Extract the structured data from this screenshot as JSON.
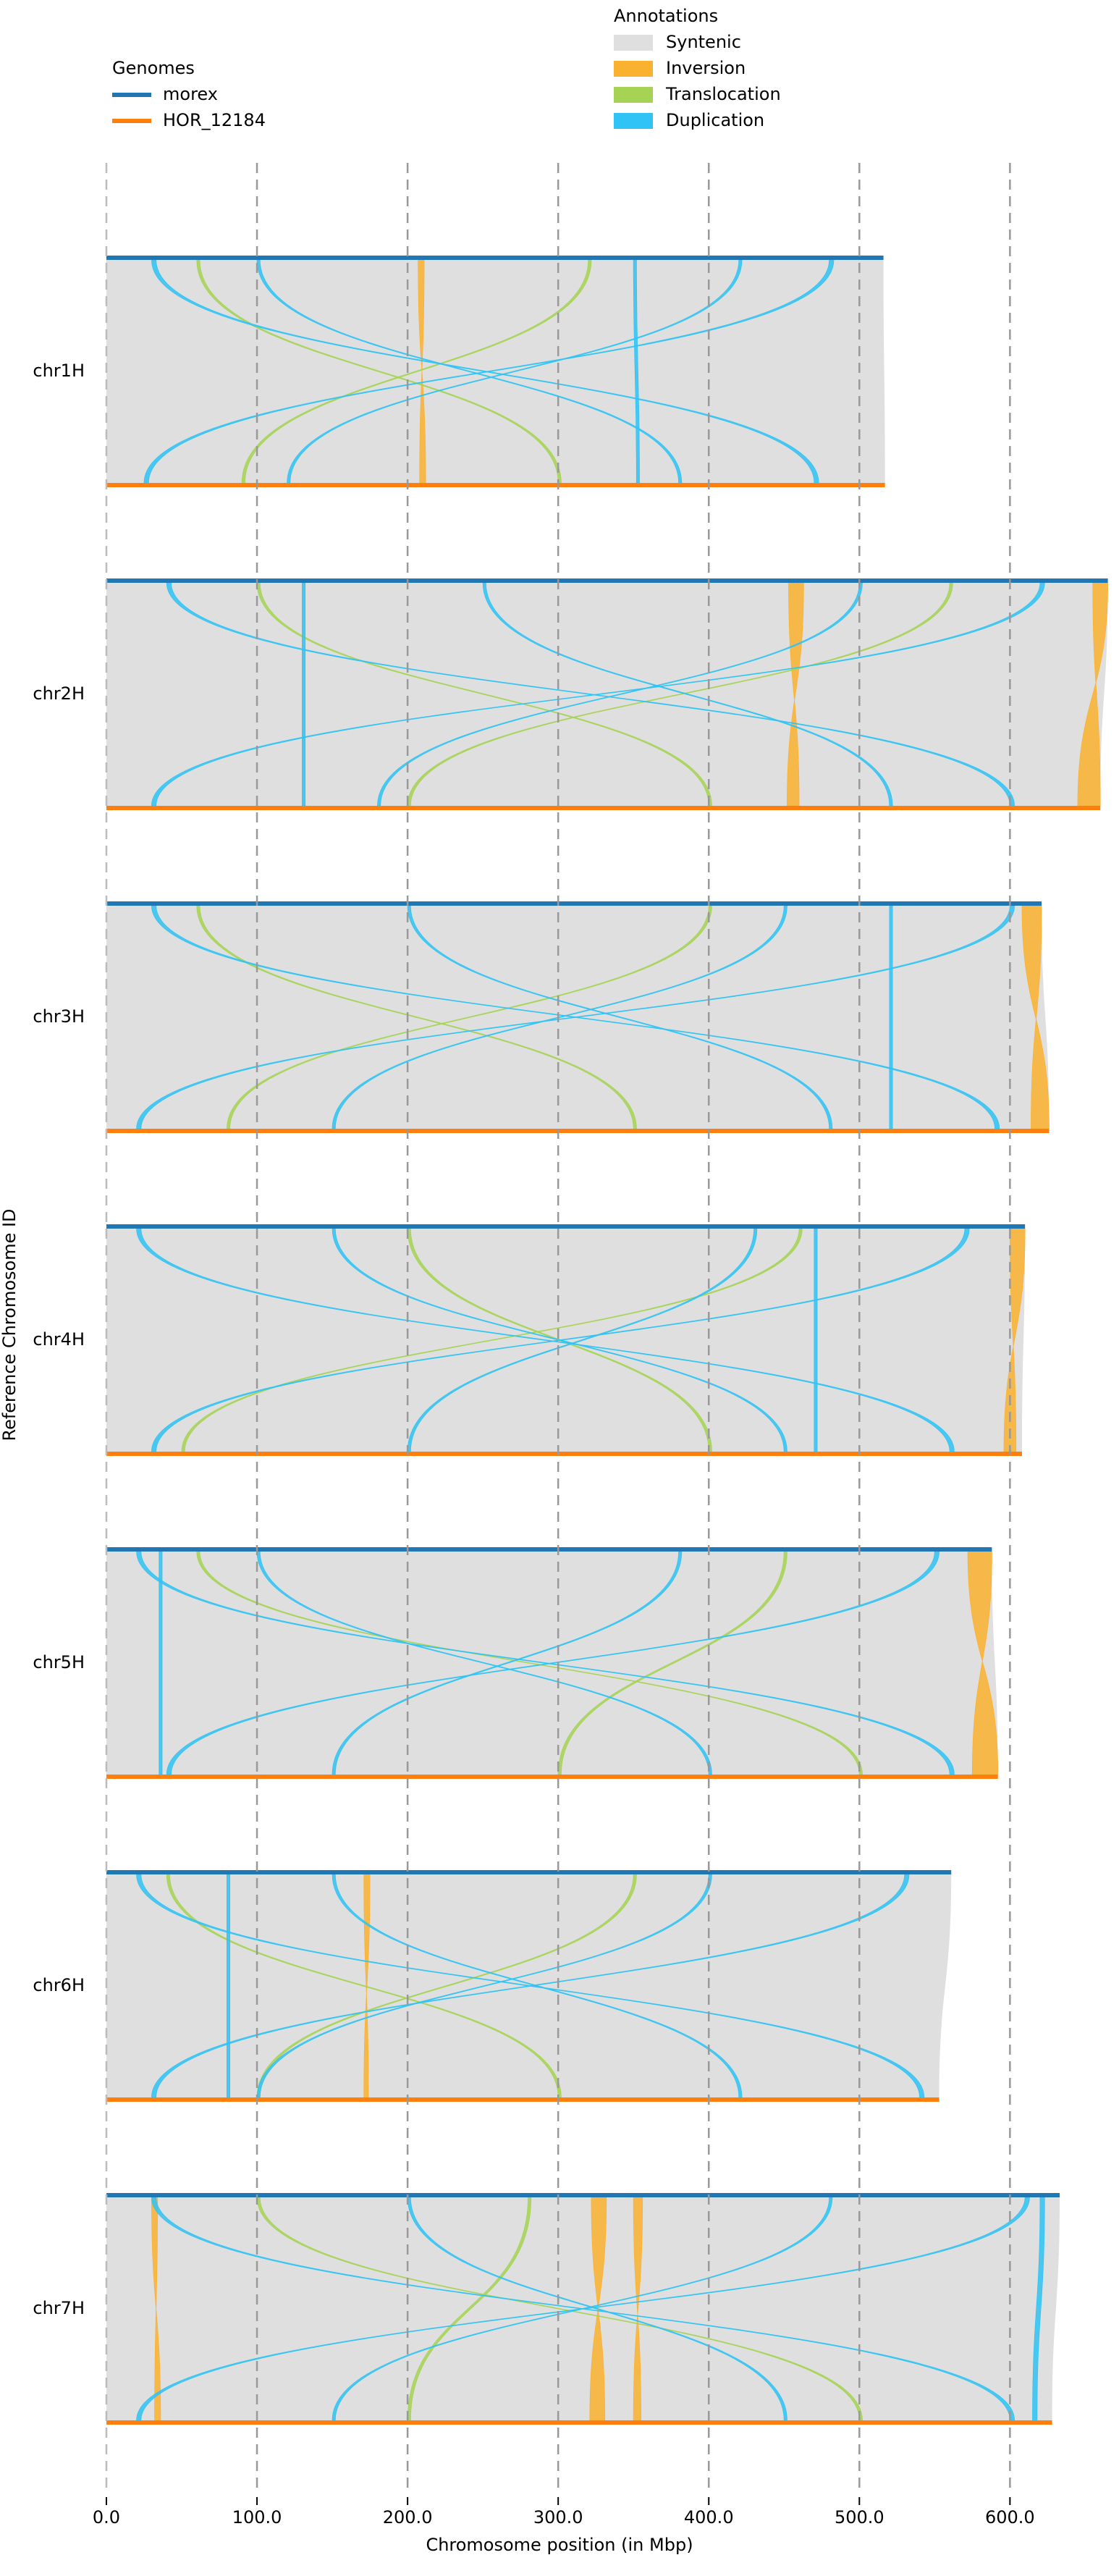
{
  "chart_data": {
    "type": "synteny",
    "xlabel": "Chromosome position (in Mbp)",
    "ylabel": "Reference Chromosome ID",
    "genomes_title": "Genomes",
    "annotations_title": "Annotations",
    "genomes": [
      {
        "name": "morex",
        "color": "#1f77b4"
      },
      {
        "name": "HOR_12184",
        "color": "#ff7f0e"
      }
    ],
    "chromosomes": [
      "chr1H",
      "chr2H",
      "chr3H",
      "chr4H",
      "chr5H",
      "chr6H",
      "chr7H"
    ],
    "lengths": [
      [
        516,
        517
      ],
      [
        665,
        660
      ],
      [
        621,
        626
      ],
      [
        610,
        608
      ],
      [
        588,
        592
      ],
      [
        561,
        553
      ],
      [
        633,
        628
      ]
    ],
    "xlim": [
      0,
      670
    ],
    "xticks": [
      {
        "value": 0,
        "label": "0.0"
      },
      {
        "value": 100,
        "label": "100.0"
      },
      {
        "value": 200,
        "label": "200.0"
      },
      {
        "value": 300,
        "label": "300.0"
      },
      {
        "value": 400,
        "label": "400.0"
      },
      {
        "value": 500,
        "label": "500.0"
      },
      {
        "value": 600,
        "label": "600.0"
      }
    ],
    "grid": true,
    "annotations": [
      {
        "name": "Syntenic",
        "color": "#dfdfdf",
        "inverted": false,
        "regions": [
          [
            [
              [
                0,
                516
              ],
              [
                0,
                517
              ]
            ]
          ],
          [
            [
              [
                0,
                665
              ],
              [
                0,
                660
              ]
            ]
          ],
          [
            [
              [
                0,
                621
              ],
              [
                0,
                626
              ]
            ]
          ],
          [
            [
              [
                0,
                610
              ],
              [
                0,
                608
              ]
            ]
          ],
          [
            [
              [
                0,
                588
              ],
              [
                0,
                592
              ]
            ]
          ],
          [
            [
              [
                0,
                561
              ],
              [
                0,
                553
              ]
            ]
          ],
          [
            [
              [
                0,
                633
              ],
              [
                0,
                628
              ]
            ]
          ]
        ]
      },
      {
        "name": "Inversion",
        "color": "#fbb130",
        "inverted": true,
        "regions": [
          [
            [
              [
                207,
                211
              ],
              [
                208,
                212
              ]
            ]
          ],
          [
            [
              [
                453,
                463
              ],
              [
                452,
                460
              ]
            ],
            [
              [
                655,
                665
              ],
              [
                645,
                660
              ]
            ]
          ],
          [
            [
              [
                608,
                621
              ],
              [
                614,
                626
              ]
            ]
          ],
          [
            [
              [
                600,
                610
              ],
              [
                596,
                604
              ]
            ]
          ],
          [
            [
              [
                572,
                588
              ],
              [
                575,
                592
              ]
            ]
          ],
          [
            [
              [
                171,
                175
              ],
              [
                171,
                174
              ]
            ]
          ],
          [
            [
              [
                322,
                332
              ],
              [
                321,
                331
              ]
            ],
            [
              [
                350,
                356
              ],
              [
                350,
                355
              ]
            ],
            [
              [
                30,
                34
              ],
              [
                32,
                36
              ]
            ]
          ]
        ]
      },
      {
        "name": "Translocation",
        "color": "#a6d354",
        "inverted": false,
        "regions": [
          [
            [
              [
                60,
                62
              ],
              [
                300,
                302
              ]
            ],
            [
              [
                320,
                322
              ],
              [
                90,
                92
              ]
            ]
          ],
          [
            [
              [
                100,
                102
              ],
              [
                400,
                402
              ]
            ],
            [
              [
                560,
                562
              ],
              [
                200,
                202
              ]
            ]
          ],
          [
            [
              [
                60,
                62
              ],
              [
                350,
                352
              ]
            ],
            [
              [
                400,
                402
              ],
              [
                80,
                82
              ]
            ]
          ],
          [
            [
              [
                200,
                202
              ],
              [
                400,
                402
              ]
            ],
            [
              [
                460,
                462
              ],
              [
                50,
                52
              ]
            ]
          ],
          [
            [
              [
                60,
                62
              ],
              [
                500,
                502
              ]
            ],
            [
              [
                450,
                452
              ],
              [
                300,
                302
              ]
            ]
          ],
          [
            [
              [
                40,
                42
              ],
              [
                300,
                302
              ]
            ],
            [
              [
                350,
                352
              ],
              [
                100,
                102
              ]
            ]
          ],
          [
            [
              [
                100,
                102
              ],
              [
                500,
                502
              ]
            ],
            [
              [
                280,
                282
              ],
              [
                200,
                202
              ]
            ]
          ]
        ]
      },
      {
        "name": "Duplication",
        "color": "#30c3f5",
        "inverted": false,
        "regions": [
          [
            [
              [
                30,
                33
              ],
              [
                470,
                473
              ]
            ],
            [
              [
                480,
                483
              ],
              [
                25,
                28
              ]
            ],
            [
              [
                100,
                102
              ],
              [
                380,
                382
              ]
            ],
            [
              [
                420,
                422
              ],
              [
                120,
                122
              ]
            ],
            [
              [
                350,
                352
              ],
              [
                352,
                354
              ]
            ]
          ],
          [
            [
              [
                40,
                43
              ],
              [
                600,
                603
              ]
            ],
            [
              [
                620,
                623
              ],
              [
                30,
                33
              ]
            ],
            [
              [
                250,
                252
              ],
              [
                520,
                522
              ]
            ],
            [
              [
                500,
                502
              ],
              [
                180,
                182
              ]
            ],
            [
              [
                130,
                132
              ],
              [
                130,
                132
              ]
            ]
          ],
          [
            [
              [
                30,
                33
              ],
              [
                590,
                593
              ]
            ],
            [
              [
                600,
                603
              ],
              [
                20,
                23
              ]
            ],
            [
              [
                200,
                202
              ],
              [
                480,
                482
              ]
            ],
            [
              [
                450,
                452
              ],
              [
                150,
                152
              ]
            ],
            [
              [
                520,
                522
              ],
              [
                520,
                522
              ]
            ]
          ],
          [
            [
              [
                20,
                23
              ],
              [
                560,
                563
              ]
            ],
            [
              [
                570,
                573
              ],
              [
                30,
                33
              ]
            ],
            [
              [
                150,
                152
              ],
              [
                450,
                452
              ]
            ],
            [
              [
                430,
                432
              ],
              [
                200,
                202
              ]
            ],
            [
              [
                470,
                472
              ],
              [
                470,
                472
              ]
            ]
          ],
          [
            [
              [
                20,
                23
              ],
              [
                560,
                563
              ]
            ],
            [
              [
                550,
                553
              ],
              [
                40,
                43
              ]
            ],
            [
              [
                100,
                102
              ],
              [
                400,
                402
              ]
            ],
            [
              [
                380,
                382
              ],
              [
                150,
                152
              ]
            ],
            [
              [
                35,
                37
              ],
              [
                35,
                37
              ]
            ]
          ],
          [
            [
              [
                20,
                23
              ],
              [
                540,
                543
              ]
            ],
            [
              [
                530,
                533
              ],
              [
                30,
                33
              ]
            ],
            [
              [
                150,
                152
              ],
              [
                420,
                422
              ]
            ],
            [
              [
                400,
                402
              ],
              [
                100,
                102
              ]
            ],
            [
              [
                80,
                82
              ],
              [
                80,
                82
              ]
            ]
          ],
          [
            [
              [
                30,
                33
              ],
              [
                600,
                603
              ]
            ],
            [
              [
                610,
                613
              ],
              [
                20,
                23
              ]
            ],
            [
              [
                200,
                202
              ],
              [
                450,
                452
              ]
            ],
            [
              [
                480,
                482
              ],
              [
                150,
                152
              ]
            ],
            [
              [
                620,
                623
              ],
              [
                615,
                618
              ]
            ]
          ]
        ]
      }
    ]
  }
}
